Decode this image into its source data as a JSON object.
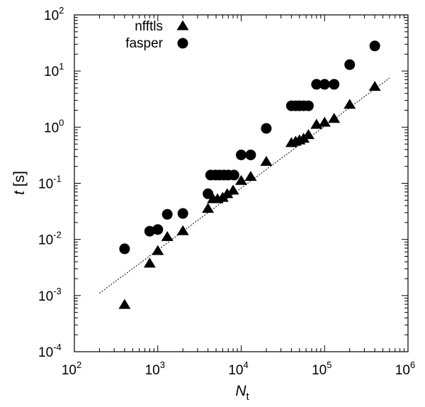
{
  "chart_data": {
    "type": "scatter",
    "title": "",
    "xlabel": {
      "main": "N",
      "sub": "t"
    },
    "ylabel": {
      "italic": "t",
      "rest": " [s]"
    },
    "x_scale": "log",
    "y_scale": "log",
    "xlim": [
      100,
      1000000
    ],
    "ylim": [
      0.0001,
      100
    ],
    "x_ticks": [
      {
        "value": 100,
        "base": "10",
        "exp": "2"
      },
      {
        "value": 1000,
        "base": "10",
        "exp": "3"
      },
      {
        "value": 10000,
        "base": "10",
        "exp": "4"
      },
      {
        "value": 100000,
        "base": "10",
        "exp": "5"
      },
      {
        "value": 1000000,
        "base": "10",
        "exp": "6"
      }
    ],
    "y_ticks": [
      {
        "value": 0.0001,
        "base": "10",
        "exp": "-4"
      },
      {
        "value": 0.001,
        "base": "10",
        "exp": "-3"
      },
      {
        "value": 0.01,
        "base": "10",
        "exp": "-2"
      },
      {
        "value": 0.1,
        "base": "10",
        "exp": "-1"
      },
      {
        "value": 1,
        "base": "10",
        "exp": "0"
      },
      {
        "value": 10,
        "base": "10",
        "exp": "1"
      },
      {
        "value": 100,
        "base": "10",
        "exp": "2"
      }
    ],
    "grid": false,
    "legend_position": "top-left",
    "series": [
      {
        "name": "nfftls",
        "marker": "triangle",
        "color": "#000000",
        "points": [
          [
            400,
            0.00068
          ],
          [
            800,
            0.0037
          ],
          [
            1000,
            0.0062
          ],
          [
            1300,
            0.011
          ],
          [
            2000,
            0.014
          ],
          [
            4000,
            0.035
          ],
          [
            4600,
            0.052
          ],
          [
            5200,
            0.052
          ],
          [
            6000,
            0.055
          ],
          [
            6800,
            0.064
          ],
          [
            8000,
            0.074
          ],
          [
            10000,
            0.11
          ],
          [
            13000,
            0.13
          ],
          [
            20000,
            0.24
          ],
          [
            40000,
            0.52
          ],
          [
            45000,
            0.55
          ],
          [
            50000,
            0.58
          ],
          [
            56000,
            0.62
          ],
          [
            64000,
            0.72
          ],
          [
            80000,
            1.1
          ],
          [
            100000,
            1.2
          ],
          [
            130000,
            1.4
          ],
          [
            200000,
            2.5
          ],
          [
            400000,
            5.2
          ]
        ]
      },
      {
        "name": "fasper",
        "marker": "circle",
        "color": "#000000",
        "points": [
          [
            400,
            0.0068
          ],
          [
            800,
            0.014
          ],
          [
            1000,
            0.015
          ],
          [
            1300,
            0.028
          ],
          [
            2000,
            0.029
          ],
          [
            4000,
            0.065
          ],
          [
            4300,
            0.14
          ],
          [
            4900,
            0.14
          ],
          [
            5500,
            0.14
          ],
          [
            6200,
            0.14
          ],
          [
            7000,
            0.14
          ],
          [
            8200,
            0.14
          ],
          [
            10000,
            0.32
          ],
          [
            13000,
            0.32
          ],
          [
            20000,
            0.95
          ],
          [
            40000,
            2.4
          ],
          [
            45000,
            2.4
          ],
          [
            50000,
            2.4
          ],
          [
            56000,
            2.4
          ],
          [
            64000,
            2.4
          ],
          [
            80000,
            5.8
          ],
          [
            100000,
            5.8
          ],
          [
            130000,
            5.8
          ],
          [
            200000,
            13
          ],
          [
            400000,
            28
          ]
        ]
      }
    ],
    "fit_line": {
      "style": "dotted",
      "from": [
        200,
        0.0011
      ],
      "to": [
        600000,
        7.5
      ]
    }
  }
}
